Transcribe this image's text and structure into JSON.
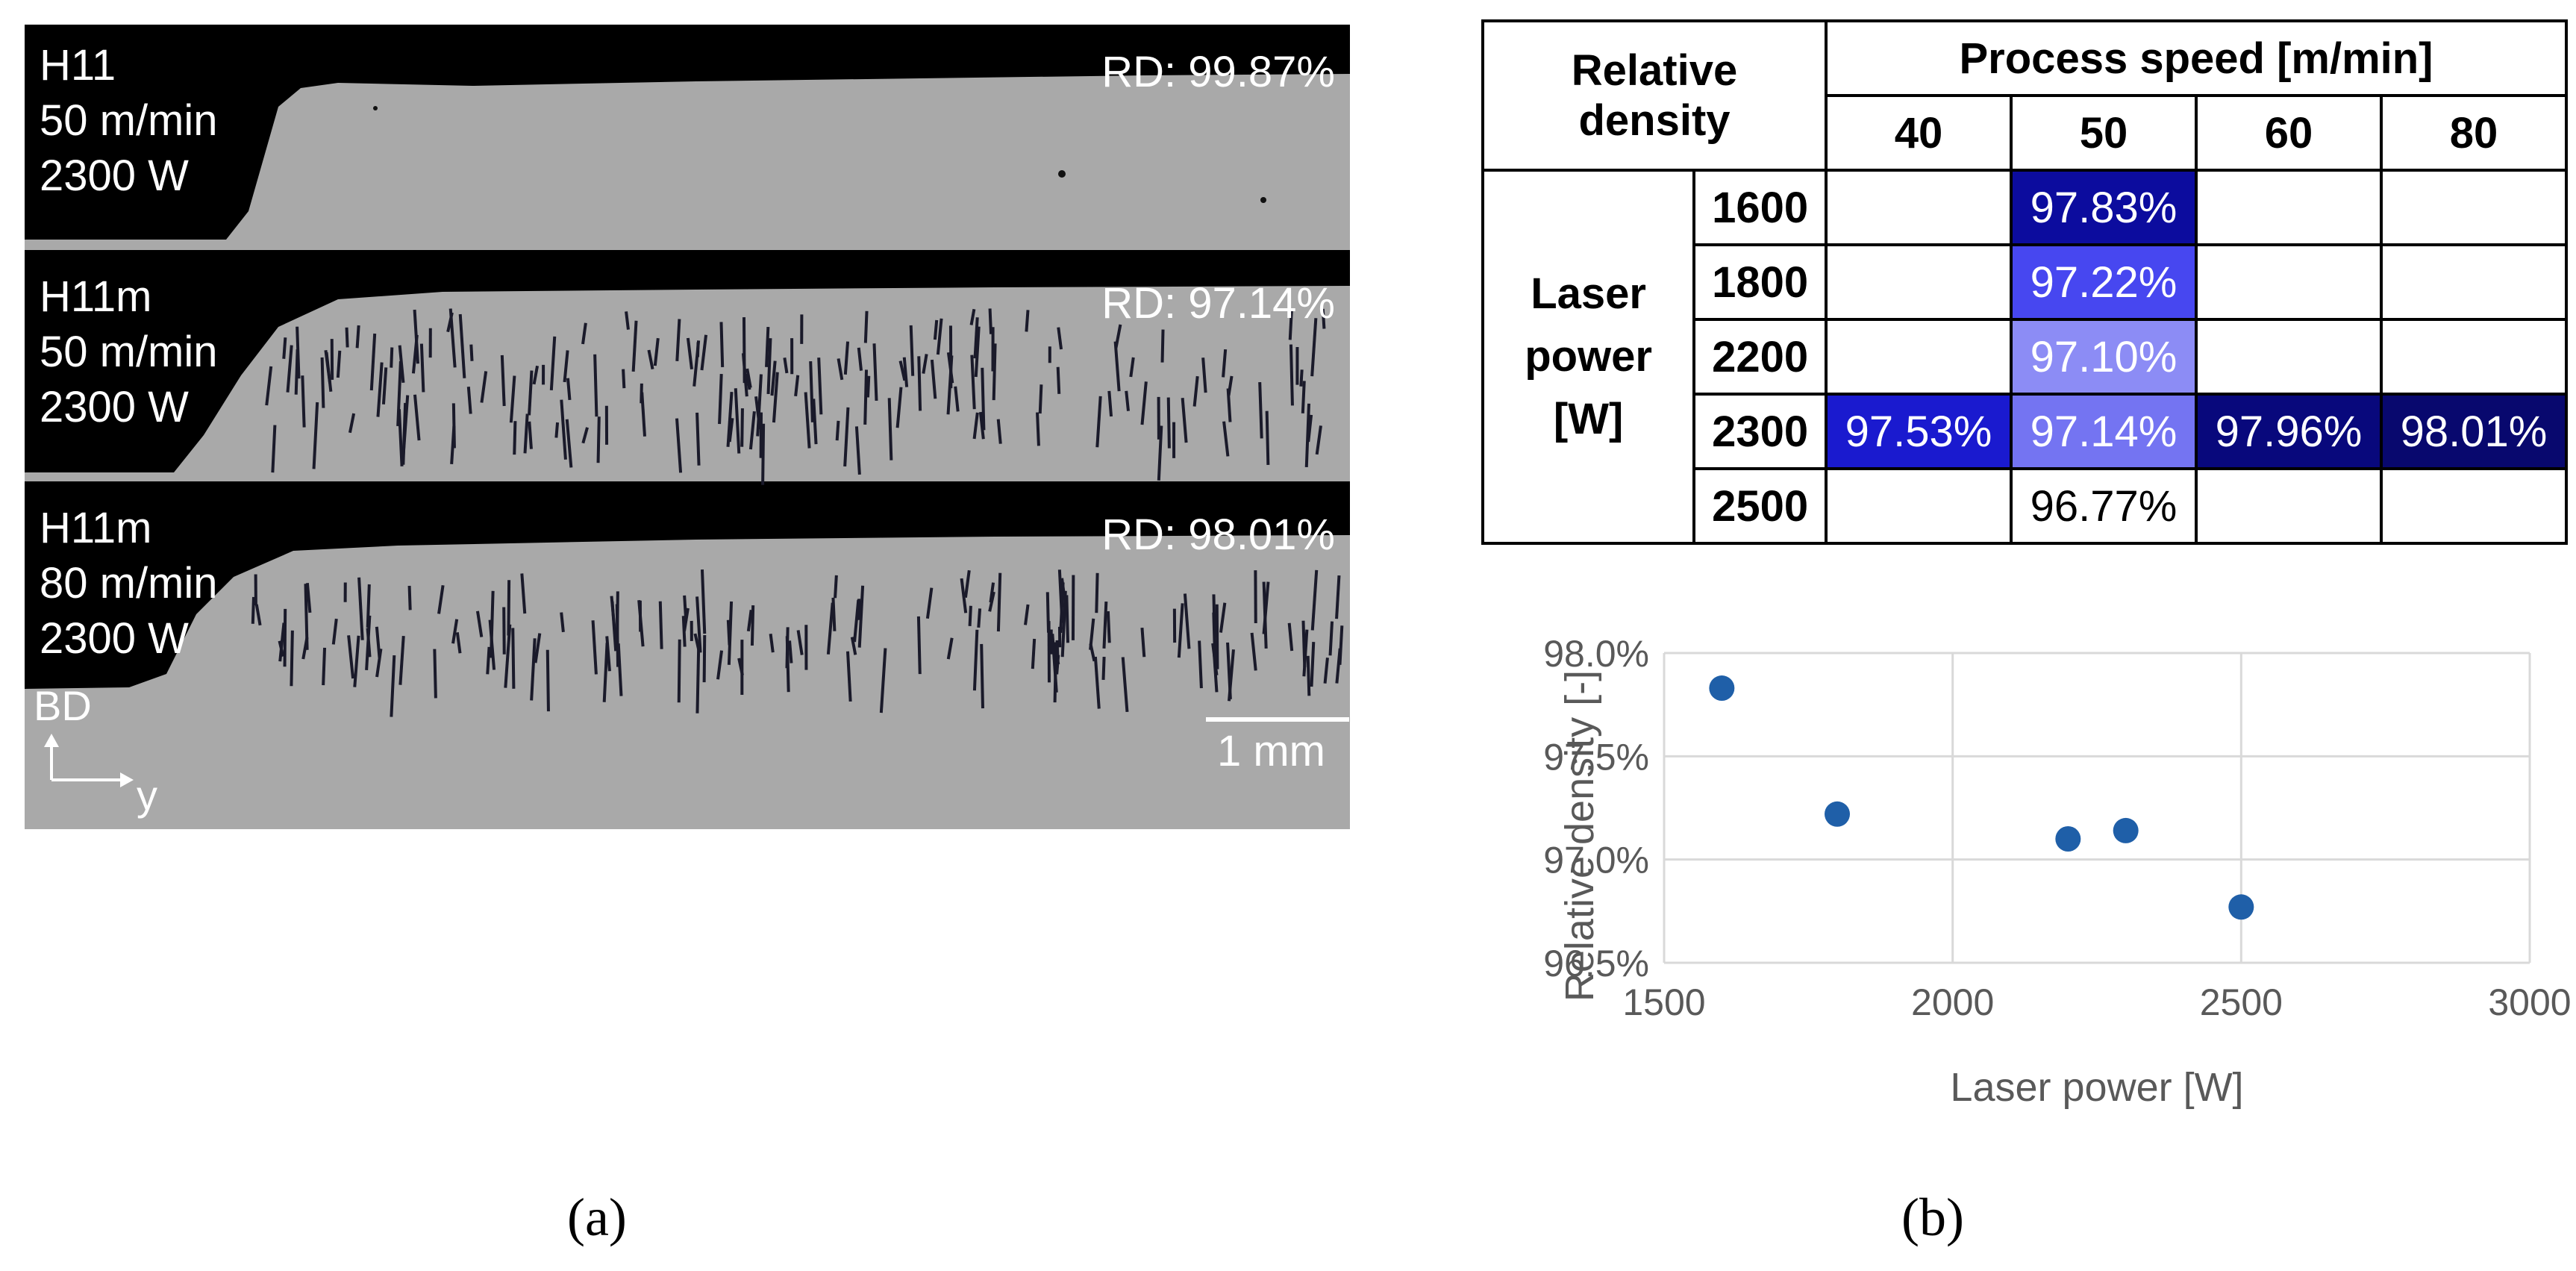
{
  "panel_a": {
    "samples": [
      {
        "line1": "H11",
        "line2": "50 m/min",
        "line3": "2300 W",
        "rd": "RD: 99.87%"
      },
      {
        "line1": "H11m",
        "line2": "50 m/min",
        "line3": "2300 W",
        "rd": "RD: 97.14%"
      },
      {
        "line1": "H11m",
        "line2": "80 m/min",
        "line3": "2300 W",
        "rd": "RD: 98.01%"
      }
    ],
    "scale_bar": "1 mm",
    "bd_label": "BD",
    "y_label": "y"
  },
  "table": {
    "header_left": [
      "Relative",
      "density"
    ],
    "header_top": "Process speed [m/min]",
    "speeds": [
      "40",
      "50",
      "60",
      "80"
    ],
    "row_group": [
      "Laser",
      "power",
      "[W]"
    ],
    "rows": [
      {
        "power": "1600",
        "cells": [
          "",
          "97.83%",
          "",
          ""
        ],
        "colors": [
          "#ffffff",
          "#0c0c9e",
          "#ffffff",
          "#ffffff"
        ],
        "text_colors": [
          "#000000",
          "#ffffff",
          "#000000",
          "#000000"
        ]
      },
      {
        "power": "1800",
        "cells": [
          "",
          "97.22%",
          "",
          ""
        ],
        "colors": [
          "#ffffff",
          "#4747f0",
          "#ffffff",
          "#ffffff"
        ],
        "text_colors": [
          "#000000",
          "#ffffff",
          "#000000",
          "#000000"
        ]
      },
      {
        "power": "2200",
        "cells": [
          "",
          "97.10%",
          "",
          ""
        ],
        "colors": [
          "#ffffff",
          "#8c8cf5",
          "#ffffff",
          "#ffffff"
        ],
        "text_colors": [
          "#000000",
          "#ffffff",
          "#000000",
          "#000000"
        ]
      },
      {
        "power": "2300",
        "cells": [
          "97.53%",
          "97.14%",
          "97.96%",
          "98.01%"
        ],
        "colors": [
          "#1a1acf",
          "#7474f2",
          "#08087c",
          "#08086e"
        ],
        "text_colors": [
          "#ffffff",
          "#ffffff",
          "#ffffff",
          "#ffffff"
        ]
      },
      {
        "power": "2500",
        "cells": [
          "",
          "96.77%",
          "",
          ""
        ],
        "colors": [
          "#ffffff",
          "#ffffff",
          "#ffffff",
          "#ffffff"
        ],
        "text_colors": [
          "#000000",
          "#000000",
          "#000000",
          "#000000"
        ]
      }
    ]
  },
  "chart_data": {
    "type": "scatter",
    "x": [
      1600,
      1800,
      2200,
      2300,
      2500
    ],
    "y": [
      97.83,
      97.22,
      97.1,
      97.14,
      96.77
    ],
    "xlabel": "Laser power [W]",
    "ylabel": "Relative density [-]",
    "xlim": [
      1500,
      3000
    ],
    "ylim": [
      96.5,
      98.0
    ],
    "xticks": [
      "1500",
      "2000",
      "2500",
      "3000"
    ],
    "yticks": [
      "96.5%",
      "97.0%",
      "97.5%",
      "98.0%"
    ],
    "grid": true,
    "marker_color": "#1f5fa8"
  },
  "captions": {
    "a": "(a)",
    "b": "(b)"
  }
}
